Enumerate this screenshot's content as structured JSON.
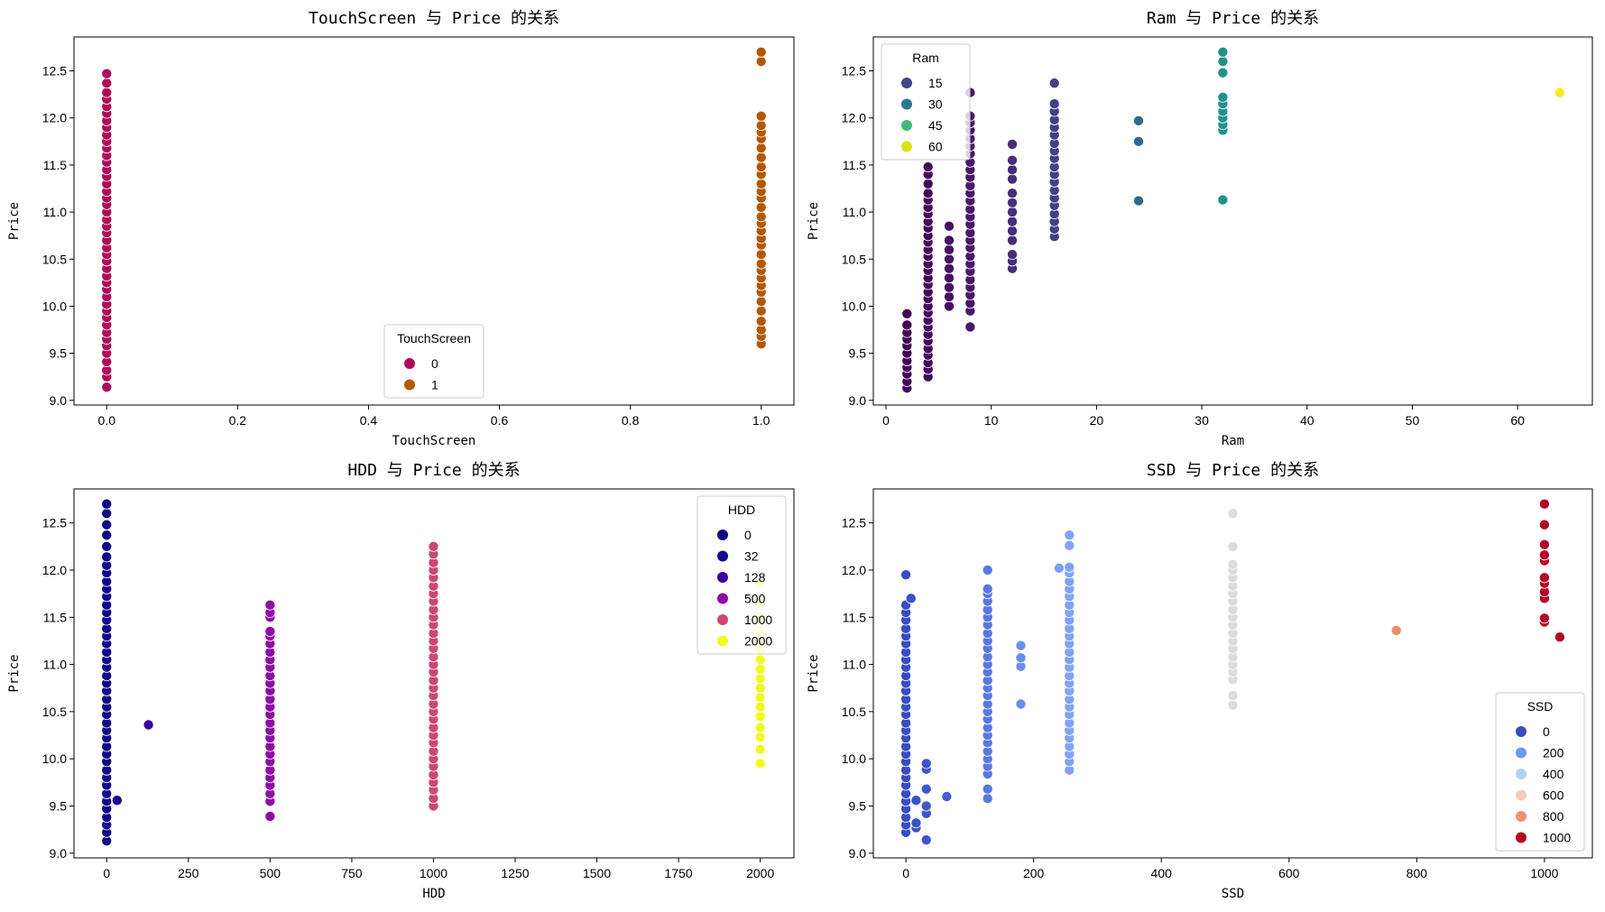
{
  "chart_data": [
    {
      "type": "scatter",
      "title": "TouchScreen 与 Price 的关系",
      "xlabel": "TouchScreen",
      "ylabel": "Price",
      "xlim": [
        -0.05,
        1.05
      ],
      "ylim": [
        8.95,
        12.86
      ],
      "xticks": [
        "0.0",
        "0.2",
        "0.4",
        "0.6",
        "0.8",
        "1.0"
      ],
      "xtick_values": [
        0,
        0.2,
        0.4,
        0.6,
        0.8,
        1.0
      ],
      "yticks": [
        "9.0",
        "9.5",
        "10.0",
        "10.5",
        "11.0",
        "11.5",
        "12.0",
        "12.5"
      ],
      "ytick_values": [
        9,
        9.5,
        10,
        10.5,
        11,
        11.5,
        12,
        12.5
      ],
      "legend": {
        "title": "TouchScreen",
        "location": "lower center",
        "entries": [
          {
            "label": "0",
            "color": "#b0085a"
          },
          {
            "label": "1",
            "color": "#b35806"
          }
        ]
      },
      "groups": [
        {
          "x": 0,
          "color": "#b0085a",
          "y": [
            9.14,
            9.25,
            9.32,
            9.41,
            9.5,
            9.58,
            9.65,
            9.72,
            9.8,
            9.88,
            9.95,
            10.02,
            10.1,
            10.18,
            10.25,
            10.32,
            10.4,
            10.48,
            10.55,
            10.62,
            10.7,
            10.78,
            10.85,
            10.92,
            11.0,
            11.08,
            11.15,
            11.22,
            11.3,
            11.38,
            11.45,
            11.53,
            11.6,
            11.68,
            11.75,
            11.82,
            11.9,
            11.97,
            12.05,
            12.12,
            12.2,
            12.27,
            12.37,
            12.47
          ]
        },
        {
          "x": 1,
          "color": "#b35806",
          "y": [
            9.6,
            9.68,
            9.75,
            9.84,
            9.95,
            10.05,
            10.15,
            10.22,
            10.3,
            10.38,
            10.45,
            10.55,
            10.65,
            10.72,
            10.8,
            10.88,
            10.95,
            11.05,
            11.15,
            11.22,
            11.3,
            11.4,
            11.48,
            11.58,
            11.68,
            11.78,
            11.85,
            11.92,
            12.02,
            12.6,
            12.7
          ]
        }
      ]
    },
    {
      "type": "scatter",
      "title": "Ram 与 Price 的关系",
      "xlabel": "Ram",
      "ylabel": "Price",
      "xlim": [
        -1.2,
        67.1
      ],
      "ylim": [
        8.95,
        12.86
      ],
      "xticks": [
        "0",
        "10",
        "20",
        "30",
        "40",
        "50",
        "60"
      ],
      "xtick_values": [
        0,
        10,
        20,
        30,
        40,
        50,
        60
      ],
      "yticks": [
        "9.0",
        "9.5",
        "10.0",
        "10.5",
        "11.0",
        "11.5",
        "12.0",
        "12.5"
      ],
      "ytick_values": [
        9,
        9.5,
        10,
        10.5,
        11,
        11.5,
        12,
        12.5
      ],
      "legend": {
        "title": "Ram",
        "location": "upper left",
        "entries": [
          {
            "label": "15",
            "color": "#414487"
          },
          {
            "label": "30",
            "color": "#2a788e"
          },
          {
            "label": "45",
            "color": "#3fbc73"
          },
          {
            "label": "60",
            "color": "#d8e219"
          }
        ]
      },
      "groups": [
        {
          "x": 2,
          "color": "#440154",
          "y": [
            9.13,
            9.2,
            9.28,
            9.35,
            9.42,
            9.5,
            9.58,
            9.65,
            9.72,
            9.8,
            9.92
          ]
        },
        {
          "x": 4,
          "color": "#46085c",
          "y": [
            9.25,
            9.33,
            9.4,
            9.48,
            9.55,
            9.63,
            9.7,
            9.78,
            9.85,
            9.93,
            10.0,
            10.08,
            10.15,
            10.23,
            10.3,
            10.38,
            10.45,
            10.53,
            10.6,
            10.68,
            10.75,
            10.83,
            10.9,
            10.98,
            11.05,
            11.13,
            11.2,
            11.3,
            11.4,
            11.48
          ]
        },
        {
          "x": 6,
          "color": "#471063",
          "y": [
            10.0,
            10.1,
            10.2,
            10.3,
            10.4,
            10.5,
            10.6,
            10.7,
            10.85
          ]
        },
        {
          "x": 8,
          "color": "#48186a",
          "y": [
            9.78,
            9.95,
            10.03,
            10.12,
            10.2,
            10.28,
            10.37,
            10.45,
            10.53,
            10.62,
            10.7,
            10.78,
            10.87,
            10.95,
            11.03,
            11.12,
            11.2,
            11.28,
            11.37,
            11.45,
            11.53,
            11.62,
            11.7,
            11.78,
            11.87,
            11.95,
            12.02,
            12.27
          ]
        },
        {
          "x": 12,
          "color": "#472d7b",
          "y": [
            10.4,
            10.48,
            10.55,
            10.7,
            10.8,
            10.9,
            11.0,
            11.1,
            11.2,
            11.35,
            11.45,
            11.55,
            11.72
          ]
        },
        {
          "x": 16,
          "color": "#424086",
          "y": [
            10.74,
            10.82,
            10.9,
            10.98,
            11.07,
            11.15,
            11.23,
            11.32,
            11.4,
            11.48,
            11.57,
            11.65,
            11.73,
            11.82,
            11.9,
            11.98,
            12.07,
            12.15,
            12.37
          ]
        },
        {
          "x": 24,
          "color": "#31688e",
          "y": [
            11.12,
            11.75,
            11.97
          ]
        },
        {
          "x": 32,
          "color": "#21918c",
          "y": [
            11.13,
            11.87,
            11.93,
            12.0,
            12.07,
            12.15,
            12.22,
            12.48,
            12.6,
            12.7
          ]
        },
        {
          "x": 64,
          "color": "#fde725",
          "y": [
            12.27
          ]
        }
      ]
    },
    {
      "type": "scatter",
      "title": "HDD 与 Price 的关系",
      "xlabel": "HDD",
      "ylabel": "Price",
      "xlim": [
        -100,
        2103
      ],
      "ylim": [
        8.95,
        12.86
      ],
      "xticks": [
        "0",
        "250",
        "500",
        "750",
        "1000",
        "1250",
        "1500",
        "1750",
        "2000"
      ],
      "xtick_values": [
        0,
        250,
        500,
        750,
        1000,
        1250,
        1500,
        1750,
        2000
      ],
      "yticks": [
        "9.0",
        "9.5",
        "10.0",
        "10.5",
        "11.0",
        "11.5",
        "12.0",
        "12.5"
      ],
      "ytick_values": [
        9,
        9.5,
        10,
        10.5,
        11,
        11.5,
        12,
        12.5
      ],
      "legend": {
        "title": "HDD",
        "location": "upper right",
        "entries": [
          {
            "label": "0",
            "color": "#0d0887"
          },
          {
            "label": "32",
            "color": "#14078c"
          },
          {
            "label": "128",
            "color": "#3a049a"
          },
          {
            "label": "500",
            "color": "#8f0da4"
          },
          {
            "label": "1000",
            "color": "#cc4778"
          },
          {
            "label": "2000",
            "color": "#f0f921"
          }
        ]
      },
      "groups": [
        {
          "x": 0,
          "color": "#0d0887",
          "y": [
            9.13,
            9.22,
            9.3,
            9.38,
            9.47,
            9.55,
            9.63,
            9.72,
            9.8,
            9.88,
            9.97,
            10.05,
            10.13,
            10.22,
            10.3,
            10.38,
            10.47,
            10.55,
            10.63,
            10.72,
            10.8,
            10.88,
            10.97,
            11.05,
            11.13,
            11.22,
            11.3,
            11.38,
            11.47,
            11.55,
            11.63,
            11.72,
            11.8,
            11.88,
            11.97,
            12.05,
            12.14,
            12.25,
            12.37,
            12.48,
            12.6,
            12.7
          ]
        },
        {
          "x": 32,
          "color": "#14078c",
          "y": [
            9.56
          ]
        },
        {
          "x": 128,
          "color": "#3a049a",
          "y": [
            10.36
          ]
        },
        {
          "x": 500,
          "color": "#8f0da4",
          "y": [
            9.39,
            9.55,
            9.63,
            9.72,
            9.8,
            9.88,
            9.97,
            10.05,
            10.13,
            10.22,
            10.3,
            10.38,
            10.47,
            10.55,
            10.63,
            10.72,
            10.8,
            10.88,
            10.97,
            11.05,
            11.13,
            11.22,
            11.3,
            11.35,
            11.5,
            11.55,
            11.63
          ]
        },
        {
          "x": 1000,
          "color": "#cc4778",
          "y": [
            9.5,
            9.58,
            9.67,
            9.75,
            9.83,
            9.92,
            10.0,
            10.08,
            10.17,
            10.25,
            10.33,
            10.42,
            10.5,
            10.58,
            10.67,
            10.75,
            10.83,
            10.92,
            11.0,
            11.08,
            11.17,
            11.25,
            11.33,
            11.42,
            11.5,
            11.58,
            11.67,
            11.75,
            11.83,
            11.92,
            12.0,
            12.08,
            12.17,
            12.25
          ]
        },
        {
          "x": 2000,
          "color": "#f0f921",
          "y": [
            9.95,
            10.1,
            10.23,
            10.33,
            10.45,
            10.55,
            10.65,
            10.75,
            10.85,
            10.95,
            11.05,
            11.15,
            11.25,
            11.35,
            11.5,
            11.65,
            11.85
          ]
        }
      ]
    },
    {
      "type": "scatter",
      "title": "SSD 与 Price 的关系",
      "xlabel": "SSD",
      "ylabel": "Price",
      "xlim": [
        -51,
        1075
      ],
      "ylim": [
        8.95,
        12.86
      ],
      "xticks": [
        "0",
        "200",
        "400",
        "600",
        "800",
        "1000"
      ],
      "xtick_values": [
        0,
        200,
        400,
        600,
        800,
        1000
      ],
      "yticks": [
        "9.0",
        "9.5",
        "10.0",
        "10.5",
        "11.0",
        "11.5",
        "12.0",
        "12.5"
      ],
      "ytick_values": [
        9,
        9.5,
        10,
        10.5,
        11,
        11.5,
        12,
        12.5
      ],
      "legend": {
        "title": "SSD",
        "location": "lower right",
        "entries": [
          {
            "label": "0",
            "color": "#3b4cc0"
          },
          {
            "label": "200",
            "color": "#7396f5"
          },
          {
            "label": "400",
            "color": "#b8d0f9"
          },
          {
            "label": "600",
            "color": "#f1cdbb"
          },
          {
            "label": "800",
            "color": "#f29072"
          },
          {
            "label": "1000",
            "color": "#b40426"
          }
        ]
      },
      "groups": [
        {
          "x": 0,
          "color": "#3b4cc0",
          "y": [
            9.22,
            9.3,
            9.38,
            9.47,
            9.55,
            9.63,
            9.72,
            9.8,
            9.88,
            9.97,
            10.05,
            10.13,
            10.22,
            10.3,
            10.38,
            10.47,
            10.55,
            10.63,
            10.72,
            10.8,
            10.88,
            10.97,
            11.05,
            11.13,
            11.22,
            11.3,
            11.38,
            11.47,
            11.55,
            11.63,
            11.95
          ]
        },
        {
          "x": 8,
          "color": "#3d50c3",
          "y": [
            11.7
          ]
        },
        {
          "x": 16,
          "color": "#3e51c5",
          "y": [
            9.27,
            9.32,
            9.56
          ]
        },
        {
          "x": 32,
          "color": "#4055c8",
          "y": [
            9.14,
            9.42,
            9.5,
            9.68,
            9.89,
            9.95
          ]
        },
        {
          "x": 64,
          "color": "#465ecf",
          "y": [
            9.6
          ]
        },
        {
          "x": 128,
          "color": "#5a78e4",
          "y": [
            9.58,
            9.68,
            9.84,
            9.92,
            10.0,
            10.08,
            10.17,
            10.25,
            10.33,
            10.42,
            10.5,
            10.58,
            10.67,
            10.75,
            10.83,
            10.92,
            11.0,
            11.08,
            11.17,
            11.25,
            11.33,
            11.42,
            11.5,
            11.58,
            11.67,
            11.75,
            11.8,
            12.0
          ]
        },
        {
          "x": 180,
          "color": "#6b8df0",
          "y": [
            10.58,
            10.98,
            11.07,
            11.2
          ]
        },
        {
          "x": 240,
          "color": "#7b9ff9",
          "y": [
            12.02
          ]
        },
        {
          "x": 256,
          "color": "#80a3fa",
          "y": [
            9.88,
            9.97,
            10.05,
            10.13,
            10.22,
            10.3,
            10.38,
            10.47,
            10.55,
            10.63,
            10.72,
            10.8,
            10.88,
            10.97,
            11.05,
            11.13,
            11.22,
            11.3,
            11.38,
            11.47,
            11.55,
            11.63,
            11.72,
            11.8,
            11.88,
            11.97,
            12.03,
            12.26,
            12.37
          ]
        },
        {
          "x": 512,
          "color": "#dddcdc",
          "y": [
            10.57,
            10.67,
            10.84,
            10.92,
            11.0,
            11.08,
            11.17,
            11.25,
            11.33,
            11.42,
            11.5,
            11.58,
            11.67,
            11.75,
            11.83,
            11.92,
            12.0,
            12.06,
            12.25,
            12.6
          ]
        },
        {
          "x": 768,
          "color": "#f08b6e",
          "y": [
            11.36
          ]
        },
        {
          "x": 1000,
          "color": "#b40426",
          "y": [
            11.45,
            11.49,
            11.7,
            11.77,
            11.86,
            11.92,
            12.1,
            12.16,
            12.27,
            12.48,
            12.7
          ]
        },
        {
          "x": 1024,
          "color": "#b40426",
          "y": [
            11.29
          ]
        }
      ]
    }
  ]
}
